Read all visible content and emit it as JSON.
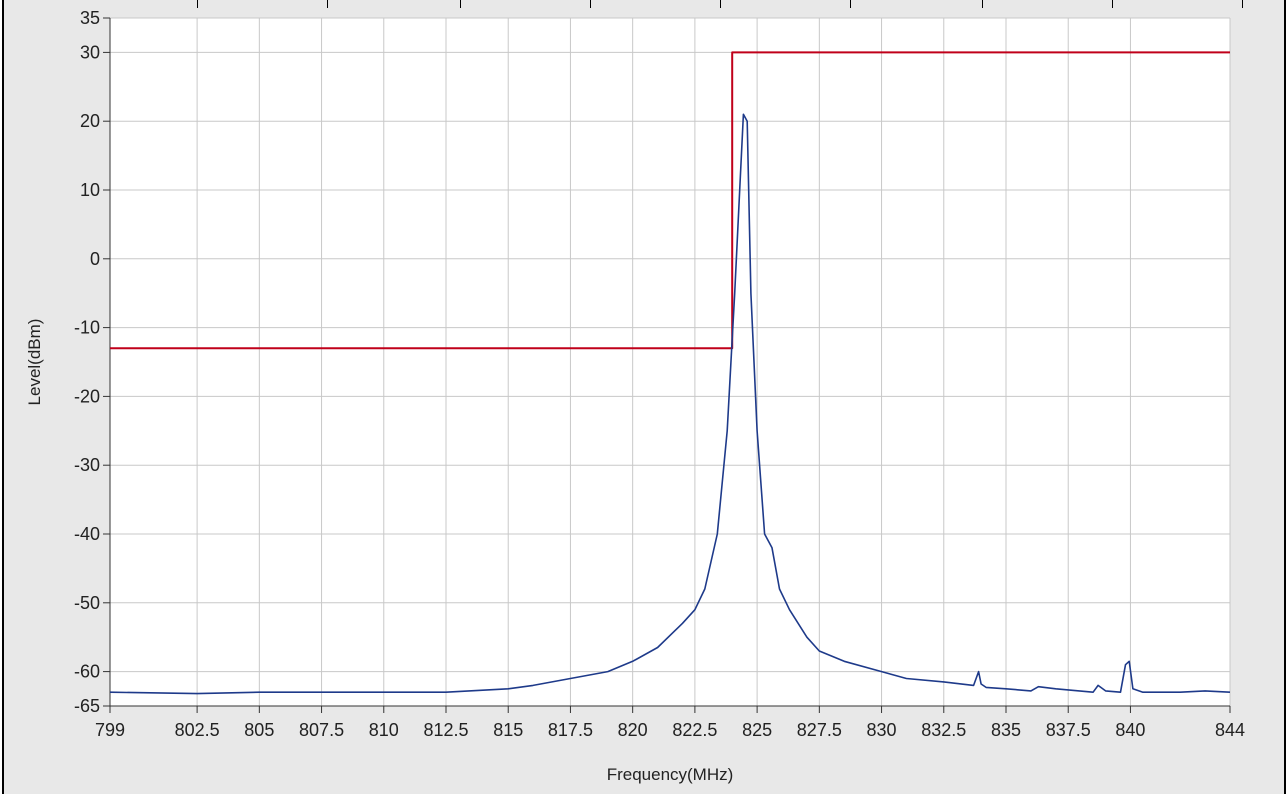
{
  "colors": {
    "panel_bg": "#e8e8e8",
    "plot_bg": "#ffffff",
    "grid": "#c8c8c8",
    "mask_line": "#c0001a",
    "trace": "#1e3a8a"
  },
  "chart_data": {
    "type": "line",
    "xlabel": "Frequency(MHz)",
    "ylabel": "Level(dBm)",
    "xlim": [
      799,
      844
    ],
    "ylim": [
      -65,
      35
    ],
    "x_ticks": [
      799,
      802.5,
      805,
      807.5,
      810,
      812.5,
      815,
      817.5,
      820,
      822.5,
      825,
      827.5,
      830,
      832.5,
      835,
      837.5,
      840,
      844
    ],
    "x_tick_labels": [
      "799",
      "802.5",
      "805",
      "807.5",
      "810",
      "812.5",
      "815",
      "817.5",
      "820",
      "822.5",
      "825",
      "827.5",
      "830",
      "832.5",
      "835",
      "837.5",
      "840",
      "844"
    ],
    "y_ticks": [
      -65,
      -60,
      -50,
      -40,
      -30,
      -20,
      -10,
      0,
      10,
      20,
      30,
      35
    ],
    "y_tick_labels": [
      "-65",
      "-60",
      "-50",
      "-40",
      "-30",
      "-20",
      "-10",
      "0",
      "10",
      "20",
      "30",
      "35"
    ],
    "grid": true,
    "series": [
      {
        "role": "limit-mask",
        "color": "#c0001a",
        "x": [
          799,
          824,
          824,
          844
        ],
        "y": [
          -13,
          -13,
          30,
          30
        ]
      },
      {
        "role": "spectrum-trace",
        "color": "#1e3a8a",
        "x": [
          799,
          802.5,
          805,
          807.5,
          810,
          812.5,
          815,
          816,
          817.5,
          819,
          820,
          821,
          822,
          822.5,
          822.9,
          823.4,
          823.8,
          824.1,
          824.3,
          824.45,
          824.6,
          824.75,
          825,
          825.3,
          825.6,
          825.9,
          826.3,
          827,
          827.5,
          828.5,
          830,
          831,
          832.5,
          833.7,
          833.9,
          834.0,
          834.2,
          835,
          836,
          836.3,
          837,
          838.5,
          838.7,
          839,
          839.6,
          839.8,
          839.95,
          840.1,
          840.5,
          842,
          843,
          844
        ],
        "y": [
          -63,
          -63.2,
          -63,
          -63,
          -63,
          -63,
          -62.5,
          -62,
          -61,
          -60,
          -58.5,
          -56.5,
          -53,
          -51,
          -48,
          -40,
          -25,
          -5,
          10,
          21,
          20,
          -5,
          -25,
          -40,
          -42,
          -48,
          -51,
          -55,
          -57,
          -58.5,
          -60,
          -61,
          -61.5,
          -62,
          -60,
          -61.8,
          -62.3,
          -62.5,
          -62.8,
          -62.2,
          -62.5,
          -63,
          -62,
          -62.8,
          -63,
          -59,
          -58.5,
          -62.5,
          -63,
          -63,
          -62.8,
          -63
        ]
      }
    ]
  }
}
